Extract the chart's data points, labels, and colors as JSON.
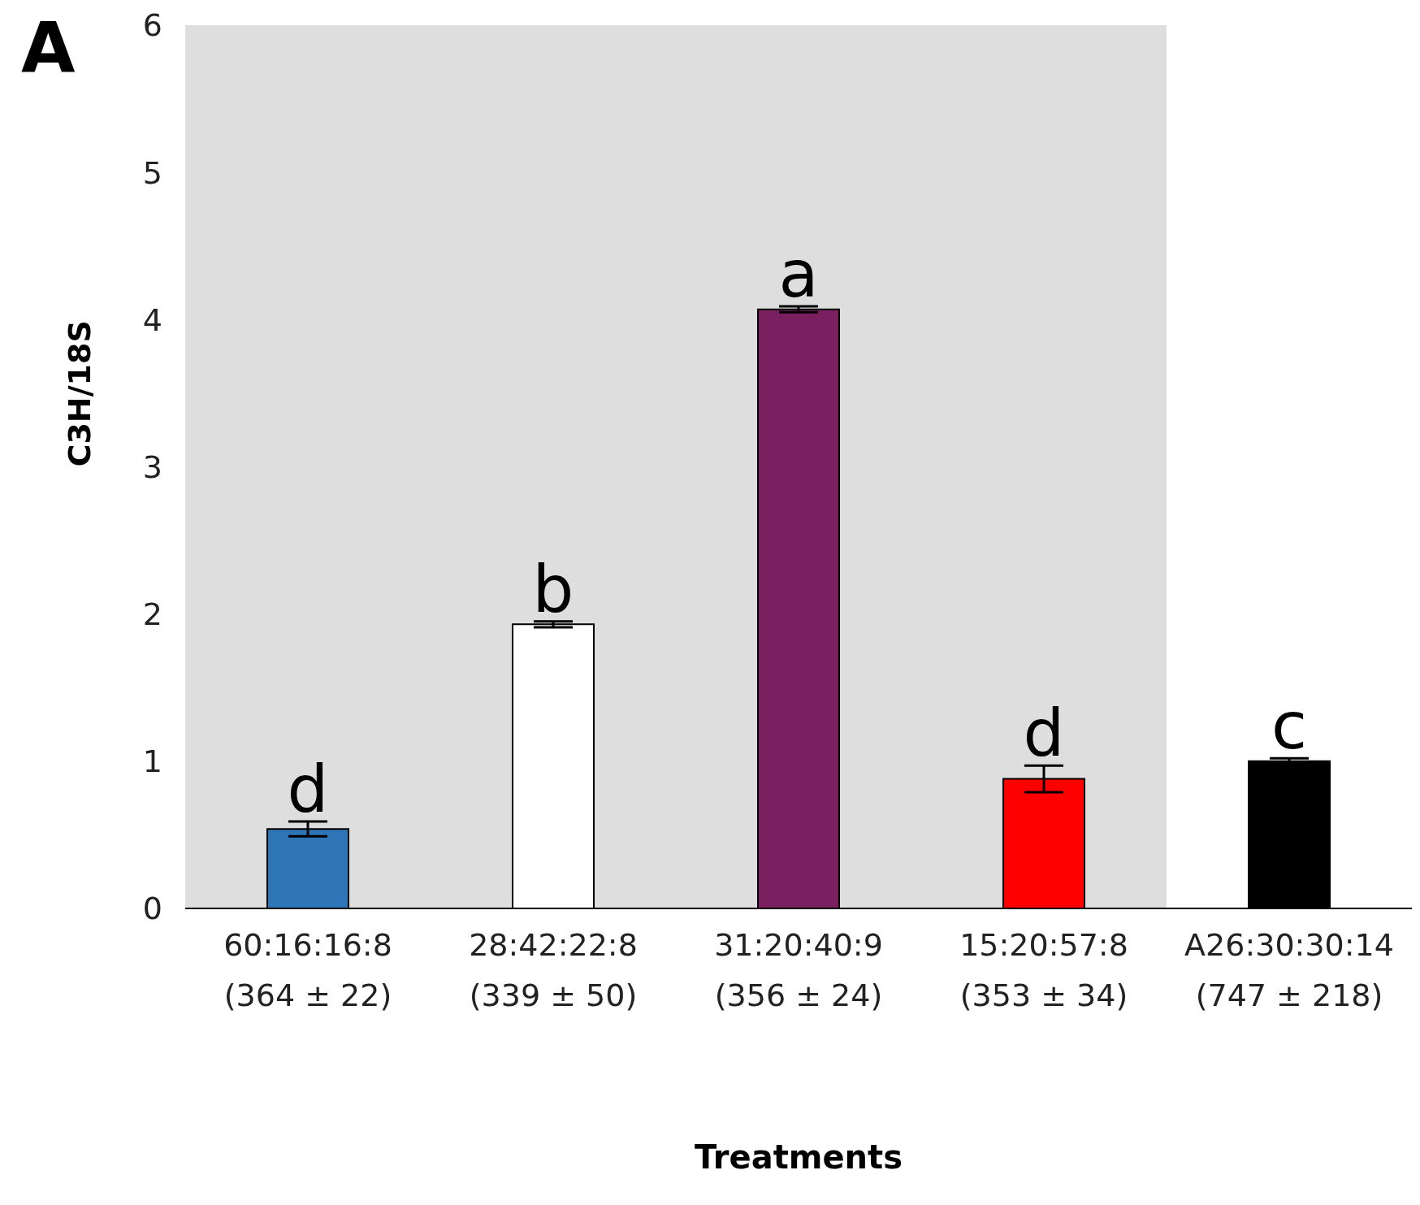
{
  "chart_data": {
    "type": "bar",
    "ylabel": "C3H/18S",
    "xlabel": "Treatments",
    "categories": [
      "60:16:16:8 (364 ± 22)",
      "28:42:22:8 (339 ± 50)",
      "31:20:40:9 (356 ± 24)",
      "15:20:57:8 (353 ± 34)",
      "A26:30:30:14 (747 ± 218)"
    ],
    "values": [
      0.54,
      1.93,
      4.07,
      0.88,
      1.0
    ],
    "errors": [
      0.05,
      0.02,
      0.02,
      0.09,
      0.02
    ],
    "colors": [
      "#2e75b6",
      "#ffffff",
      "#7a2060",
      "#ff0000",
      "#000000"
    ],
    "ylim": [
      0,
      6
    ],
    "yticks": [
      0,
      1,
      2,
      3,
      4,
      5,
      6
    ],
    "grid": false,
    "legend": false,
    "bands": [
      {
        "axis": "x",
        "from": "60:16:16:8 (364 ± 22)",
        "to": "15:20:57:8 (353 ± 34)",
        "color": "#dedede"
      }
    ],
    "annotations": [
      "A",
      {
        "text": "d",
        "x": "60:16:16:8 (364 ± 22)",
        "y": 0.59
      },
      {
        "text": "b",
        "x": "28:42:22:8 (339 ± 50)",
        "y": 1.95
      },
      {
        "text": "a",
        "x": "31:20:40:9 (356 ± 24)",
        "y": 4.09
      },
      {
        "text": "d",
        "x": "15:20:57:8 (353 ± 34)",
        "y": 0.97
      },
      {
        "text": "c",
        "x": "A26:30:30:14 (747 ± 218)",
        "y": 1.02
      }
    ]
  }
}
